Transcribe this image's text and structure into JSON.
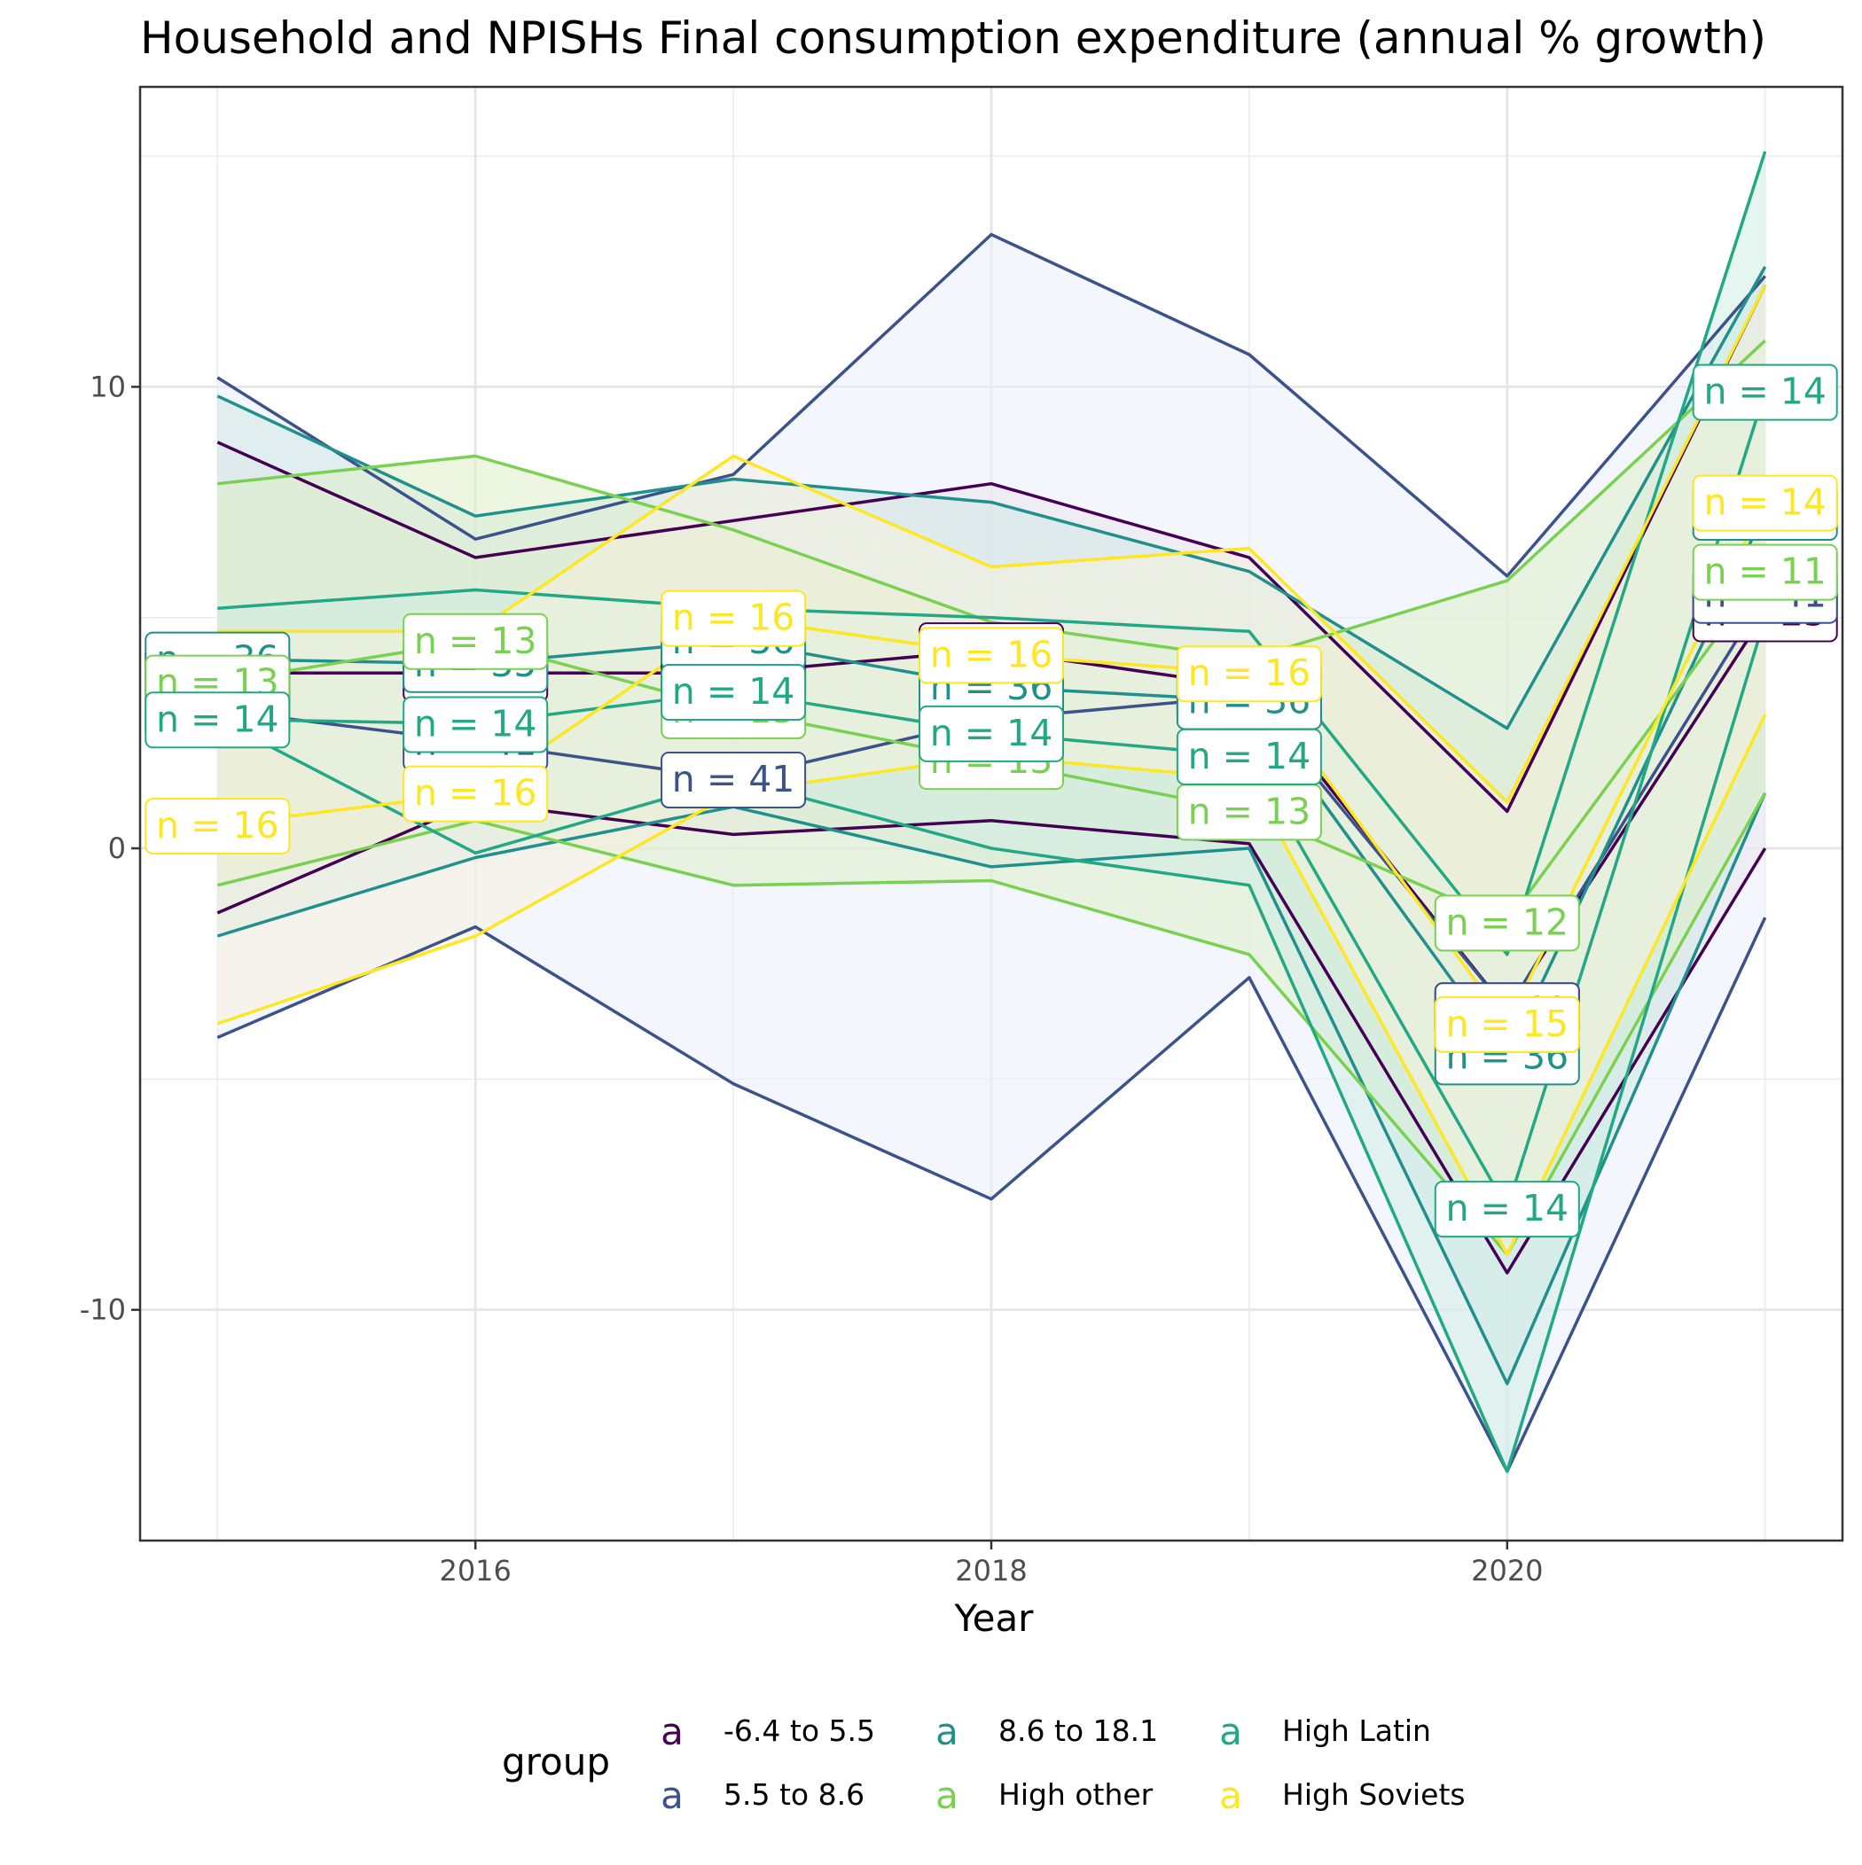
{
  "chart_data": {
    "type": "line",
    "title": "Household and NPISHs Final consumption expenditure (annual % growth)",
    "xlabel": "Year",
    "ylabel": "",
    "x": [
      2015,
      2016,
      2017,
      2018,
      2019,
      2020,
      2021
    ],
    "xticks": [
      2016,
      2018,
      2020
    ],
    "yticks": [
      -10,
      0,
      10
    ],
    "xlim": [
      2014.7,
      2021.3
    ],
    "ylim": [
      -15,
      16.5
    ],
    "grid": true,
    "legend": {
      "title": "group",
      "position": "bottom",
      "key_glyph": "a",
      "order": [
        "-6.4 to 5.5",
        "5.5 to 8.6",
        "8.6 to 18.1",
        "High other",
        "High Latin",
        "High Soviets"
      ]
    },
    "series": [
      {
        "name": "-6.4 to 5.5",
        "color": "#440154",
        "fill": "#f0d5d8",
        "mean": [
          3.8,
          3.8,
          3.8,
          4.3,
          3.5,
          -3.5,
          5.1
        ],
        "upper": [
          8.8,
          6.3,
          7.1,
          7.9,
          6.3,
          0.8,
          12.2
        ],
        "lower": [
          -1.4,
          1.0,
          0.3,
          0.6,
          0.1,
          -9.2,
          0.0
        ],
        "labels": [
          "n = 25",
          "n = 25",
          "n = 25",
          "n = 25",
          "n = 25",
          "n = 25",
          "n = 25"
        ]
      },
      {
        "name": "5.5 to 8.6",
        "color": "#3b528b",
        "fill": "#eaf0fb",
        "mean": [
          3.0,
          2.3,
          1.5,
          2.8,
          3.3,
          -3.5,
          5.5
        ],
        "upper": [
          10.2,
          6.7,
          8.1,
          13.3,
          10.7,
          5.9,
          12.4
        ],
        "lower": [
          -4.1,
          -1.7,
          -5.1,
          -7.6,
          -2.8,
          -13.5,
          -1.5
        ],
        "labels": [
          "n = 41",
          "n = 41",
          "n = 41",
          "n = 41",
          "n = 41",
          "n = 41",
          "n = 41"
        ]
      },
      {
        "name": "8.6 to 18.1",
        "color": "#21908d",
        "fill": "#cfe8e6",
        "mean": [
          4.1,
          4.0,
          4.5,
          3.5,
          3.2,
          -4.5,
          7.3
        ],
        "upper": [
          9.8,
          7.2,
          8.0,
          7.5,
          6.0,
          2.6,
          12.6
        ],
        "lower": [
          -1.9,
          -0.2,
          0.9,
          -0.4,
          0.0,
          -11.6,
          1.2
        ],
        "labels": [
          "n = 36",
          "n = 35",
          "n = 36",
          "n = 36",
          "n = 36",
          "n = 36",
          "n = 33"
        ]
      },
      {
        "name": "High other",
        "color": "#7ad151",
        "fill": "#dcefc8",
        "mean": [
          3.6,
          4.5,
          3.0,
          1.9,
          0.8,
          -1.6,
          6.0
        ],
        "upper": [
          7.9,
          8.5,
          6.9,
          4.9,
          4.1,
          5.8,
          11.0
        ],
        "lower": [
          -0.8,
          0.6,
          -0.8,
          -0.7,
          -2.3,
          -8.8,
          1.2
        ],
        "labels": [
          "n = 13",
          "n = 13",
          "n = 13",
          "n = 13",
          "n = 13",
          "n = 12",
          "n = 11"
        ]
      },
      {
        "name": "High Latin",
        "color": "#22a884",
        "fill": "#cfece4",
        "mean": [
          2.8,
          2.7,
          3.4,
          2.5,
          2.0,
          -7.8,
          9.9
        ],
        "upper": [
          5.2,
          5.6,
          5.2,
          5.0,
          4.7,
          -2.3,
          15.1
        ],
        "lower": [
          2.8,
          -0.1,
          1.5,
          0.0,
          -0.8,
          -13.5,
          5.0
        ],
        "labels": [
          "n = 14",
          "n = 14",
          "n = 14",
          "n = 14",
          "n = 14",
          "n = 14",
          "n = 14"
        ]
      },
      {
        "name": "High Soviets",
        "color": "#fde725",
        "fill": "#f6f1dc",
        "mean": [
          0.5,
          1.2,
          5.0,
          4.2,
          3.8,
          -3.8,
          7.5
        ],
        "upper": [
          4.7,
          4.7,
          8.5,
          6.1,
          6.5,
          1.0,
          12.2
        ],
        "lower": [
          -3.8,
          -1.9,
          1.2,
          2.0,
          1.5,
          -8.8,
          2.9
        ],
        "labels": [
          "n = 16",
          "n = 16",
          "n = 16",
          "n = 16",
          "n = 16",
          "n = 15",
          "n = 14"
        ]
      }
    ]
  }
}
